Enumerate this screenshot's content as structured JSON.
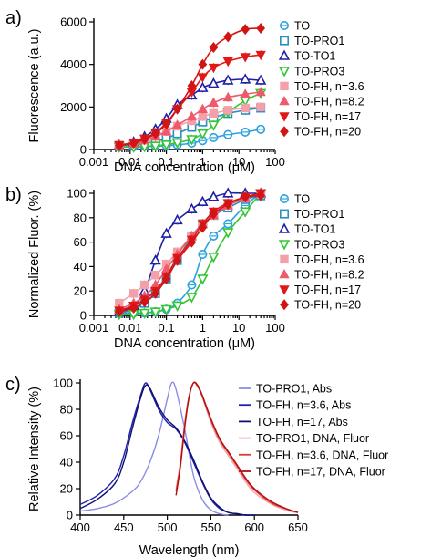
{
  "chart_data": [
    {
      "panel_label": "a)",
      "type": "line",
      "xlabel": "DNA concentration (μM)",
      "ylabel": "Fluorescence (a.u.)",
      "x_scale": "log",
      "xlim": [
        0.001,
        100
      ],
      "ylim": [
        0,
        6000
      ],
      "x_ticks": [
        "0.001",
        "0.01",
        "0.1",
        "1",
        "10",
        "100"
      ],
      "y_ticks": [
        "0",
        "2000",
        "4000",
        "6000"
      ],
      "legend_position": "right",
      "x": [
        0.005,
        0.0125,
        0.025,
        0.05,
        0.1,
        0.2,
        0.5,
        1,
        2,
        5,
        15,
        40
      ],
      "series": [
        {
          "name": "TO",
          "color": "#2aa3e0",
          "marker": "circle-open",
          "values": [
            120,
            130,
            150,
            160,
            180,
            220,
            300,
            420,
            560,
            700,
            820,
            950
          ]
        },
        {
          "name": "TO-PRO1",
          "color": "#2b8fc4",
          "marker": "square-open",
          "values": [
            180,
            220,
            280,
            380,
            520,
            750,
            1050,
            1300,
            1500,
            1700,
            1850,
            1950
          ]
        },
        {
          "name": "TO-TO1",
          "color": "#1f1fa8",
          "marker": "triangle-open",
          "values": [
            200,
            350,
            600,
            950,
            1450,
            2100,
            2550,
            2900,
            3100,
            3250,
            3300,
            3250
          ]
        },
        {
          "name": "TO-PRO3",
          "color": "#33c533",
          "marker": "triangle-down-open",
          "values": [
            120,
            120,
            140,
            170,
            230,
            320,
            480,
            750,
            1150,
            1750,
            2300,
            2650
          ]
        },
        {
          "name": "TO-FH, n=3.6",
          "color": "#f4a0a8",
          "marker": "square",
          "values": [
            220,
            320,
            480,
            650,
            850,
            1100,
            1350,
            1550,
            1700,
            1850,
            1950,
            2000
          ]
        },
        {
          "name": "TO-FH, n=8.2",
          "color": "#ee5a6a",
          "marker": "triangle",
          "values": [
            180,
            280,
            420,
            600,
            850,
            1150,
            1550,
            1900,
            2200,
            2450,
            2600,
            2700
          ]
        },
        {
          "name": "TO-FH, n=17",
          "color": "#e01818",
          "marker": "triangle-down",
          "values": [
            200,
            330,
            520,
            800,
            1250,
            1900,
            2700,
            3400,
            3850,
            4150,
            4350,
            4450
          ]
        },
        {
          "name": "TO-FH, n=20",
          "color": "#d21414",
          "marker": "diamond",
          "values": [
            180,
            300,
            480,
            750,
            1200,
            1900,
            3000,
            4000,
            4800,
            5300,
            5650,
            5700
          ]
        }
      ]
    },
    {
      "panel_label": "b)",
      "type": "line",
      "xlabel": "DNA concentration (μM)",
      "ylabel": "Normalized Fluor. (%)",
      "x_scale": "log",
      "xlim": [
        0.001,
        100
      ],
      "ylim": [
        0,
        100
      ],
      "x_ticks": [
        "0.001",
        "0.01",
        "0.1",
        "1",
        "10",
        "100"
      ],
      "y_ticks": [
        "0",
        "20",
        "40",
        "60",
        "80",
        "100"
      ],
      "legend_position": "right",
      "x": [
        0.005,
        0.0125,
        0.025,
        0.05,
        0.1,
        0.2,
        0.5,
        1,
        2,
        5,
        15,
        40
      ],
      "series": [
        {
          "name": "TO",
          "color": "#2aa3e0",
          "marker": "circle-open",
          "values": [
            2,
            2,
            2,
            3,
            5,
            10,
            25,
            50,
            65,
            75,
            90,
            100
          ]
        },
        {
          "name": "TO-PRO1",
          "color": "#2b8fc4",
          "marker": "square-open",
          "values": [
            2,
            5,
            10,
            18,
            30,
            45,
            65,
            75,
            82,
            88,
            95,
            98
          ]
        },
        {
          "name": "TO-TO1",
          "color": "#1f1fa8",
          "marker": "triangle-open",
          "values": [
            3,
            8,
            20,
            45,
            67,
            78,
            87,
            93,
            97,
            100,
            100,
            100
          ]
        },
        {
          "name": "TO-PRO3",
          "color": "#33c533",
          "marker": "triangle-down-open",
          "values": [
            1,
            1,
            2,
            3,
            5,
            8,
            15,
            30,
            48,
            68,
            85,
            100
          ]
        },
        {
          "name": "TO-FH, n=3.6",
          "color": "#f4a0a8",
          "marker": "square",
          "values": [
            10,
            18,
            25,
            33,
            42,
            52,
            65,
            75,
            82,
            90,
            96,
            100
          ]
        },
        {
          "name": "TO-FH, n=8.2",
          "color": "#ee5a6a",
          "marker": "triangle",
          "values": [
            5,
            10,
            16,
            25,
            38,
            50,
            65,
            75,
            82,
            90,
            96,
            100
          ]
        },
        {
          "name": "TO-FH, n=17",
          "color": "#e01818",
          "marker": "triangle-down",
          "values": [
            4,
            8,
            13,
            20,
            32,
            47,
            62,
            75,
            85,
            92,
            97,
            100
          ]
        },
        {
          "name": "TO-FH, n=20",
          "color": "#d21414",
          "marker": "diamond",
          "values": [
            3,
            6,
            11,
            18,
            30,
            45,
            60,
            72,
            83,
            91,
            97,
            98
          ]
        }
      ]
    },
    {
      "panel_label": "c)",
      "type": "line",
      "xlabel": "Wavelength (nm)",
      "ylabel": "Relative Intensity (%)",
      "xlim": [
        400,
        650
      ],
      "ylim": [
        0,
        100
      ],
      "x_ticks": [
        "400",
        "450",
        "500",
        "550",
        "600",
        "650"
      ],
      "y_ticks": [
        "0",
        "20",
        "40",
        "60",
        "80",
        "100"
      ],
      "legend_position": "right",
      "series": [
        {
          "name": "TO-PRO1, Abs",
          "color": "#8a8ce6",
          "x": [
            400,
            420,
            440,
            460,
            470,
            480,
            490,
            500,
            505,
            510,
            520,
            530,
            540,
            550,
            560,
            570
          ],
          "y": [
            3,
            5,
            9,
            18,
            26,
            40,
            60,
            88,
            100,
            95,
            65,
            30,
            12,
            4,
            1,
            0
          ]
        },
        {
          "name": "TO-FH, n=3.6, Abs",
          "color": "#2020b0",
          "x": [
            400,
            420,
            440,
            450,
            460,
            470,
            475,
            480,
            490,
            500,
            510,
            520,
            530,
            540,
            550,
            560,
            570,
            580,
            590,
            600
          ],
          "y": [
            8,
            15,
            28,
            45,
            70,
            92,
            100,
            95,
            80,
            70,
            65,
            55,
            40,
            25,
            12,
            5,
            2,
            1,
            0,
            0
          ]
        },
        {
          "name": "TO-FH, n=17, Abs",
          "color": "#101070",
          "x": [
            400,
            420,
            440,
            450,
            460,
            470,
            475,
            480,
            490,
            500,
            510,
            520,
            530,
            540,
            550,
            560,
            570,
            580,
            590,
            600
          ],
          "y": [
            5,
            12,
            24,
            40,
            66,
            90,
            98,
            96,
            82,
            72,
            66,
            56,
            42,
            26,
            13,
            6,
            2,
            1,
            0,
            0
          ]
        },
        {
          "name": "TO-PRO1, DNA, Fluor",
          "color": "#f2a8ae",
          "x": [
            510,
            515,
            520,
            525,
            530,
            535,
            540,
            550,
            560,
            570,
            580,
            590,
            600,
            620,
            640,
            650
          ],
          "y": [
            20,
            40,
            70,
            90,
            100,
            98,
            90,
            70,
            55,
            45,
            35,
            25,
            17,
            8,
            3,
            2
          ]
        },
        {
          "name": "TO-FH, n=3.6, DNA, Fluor",
          "color": "#e03a3a",
          "x": [
            510,
            515,
            520,
            525,
            530,
            535,
            540,
            550,
            560,
            570,
            580,
            590,
            600,
            620,
            640,
            650
          ],
          "y": [
            18,
            38,
            68,
            90,
            100,
            97,
            90,
            72,
            57,
            47,
            37,
            27,
            19,
            9,
            4,
            2
          ]
        },
        {
          "name": "TO-FH, n=17, DNA, Fluor",
          "color": "#b01010",
          "x": [
            510,
            515,
            520,
            525,
            530,
            535,
            540,
            550,
            560,
            570,
            580,
            590,
            600,
            620,
            640,
            650
          ],
          "y": [
            15,
            36,
            66,
            89,
            100,
            98,
            91,
            73,
            58,
            48,
            38,
            28,
            20,
            10,
            4,
            2
          ]
        }
      ]
    }
  ]
}
